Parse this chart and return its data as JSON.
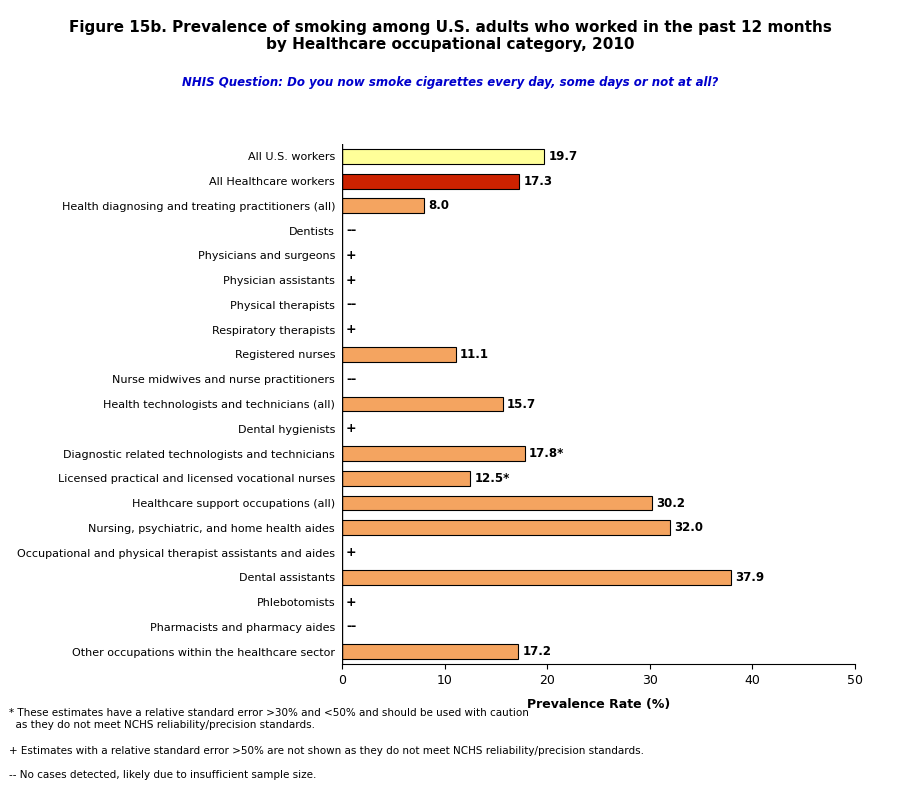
{
  "title": "Figure 15b. Prevalence of smoking among U.S. adults who worked in the past 12 months\nby Healthcare occupational category, 2010",
  "subtitle": "NHIS Question: Do you now smoke cigarettes every day, some days or not at all?",
  "xlabel": "Prevalence Rate (%)",
  "xlim": [
    0,
    50
  ],
  "xticks": [
    0,
    10,
    20,
    30,
    40,
    50
  ],
  "categories": [
    "All U.S. workers",
    "All Healthcare workers",
    "Health diagnosing and treating practitioners (all)",
    "Dentists",
    "Physicians and surgeons",
    "Physician assistants",
    "Physical therapists",
    "Respiratory therapists",
    "Registered nurses",
    "Nurse midwives and nurse practitioners",
    "Health technologists and technicians (all)",
    "Dental hygienists",
    "Diagnostic related technologists and technicians",
    "Licensed practical and licensed vocational nurses",
    "Healthcare support occupations (all)",
    "Nursing, psychiatric, and home health aides",
    "Occupational and physical therapist assistants and aides",
    "Dental assistants",
    "Phlebotomists",
    "Pharmacists and pharmacy aides",
    "Other occupations within the healthcare sector"
  ],
  "values": [
    19.7,
    17.3,
    8.0,
    null,
    null,
    null,
    null,
    null,
    11.1,
    null,
    15.7,
    null,
    17.8,
    12.5,
    30.2,
    32.0,
    null,
    37.9,
    null,
    null,
    17.2
  ],
  "symbols": [
    null,
    null,
    null,
    "--",
    "+",
    "+",
    "--",
    "+",
    null,
    "--",
    null,
    "+",
    null,
    null,
    null,
    null,
    "+",
    null,
    "+",
    "--",
    null
  ],
  "labels": [
    "19.7",
    "17.3",
    "8.0",
    null,
    null,
    null,
    null,
    null,
    "11.1",
    null,
    "15.7",
    null,
    "17.8*",
    "12.5*",
    "30.2",
    "32.0",
    null,
    "37.9",
    null,
    null,
    "17.2"
  ],
  "bar_colors": [
    "#FFFF99",
    "#CC2200",
    "#F4A460",
    null,
    null,
    null,
    null,
    null,
    "#F4A460",
    null,
    "#F4A460",
    null,
    "#F4A460",
    "#F4A460",
    "#F4A460",
    "#F4A460",
    null,
    "#F4A460",
    null,
    null,
    "#F4A460"
  ],
  "footnote1": "* These estimates have a relative standard error >30% and <50% and should be used with caution\n  as they do not meet NCHS reliability/precision standards.",
  "footnote2": "+ Estimates with a relative standard error >50% are not shown as they do not meet NCHS reliability/precision standards.",
  "footnote3": "-- No cases detected, likely due to insufficient sample size."
}
